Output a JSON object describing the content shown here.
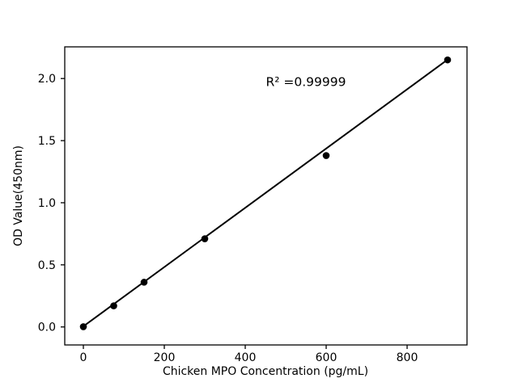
{
  "chart_data": {
    "type": "scatter",
    "title": "",
    "xlabel": "Chicken MPO Concentration (pg/mL)",
    "ylabel": "OD Value(450nm)",
    "x": [
      0,
      75,
      150,
      300,
      600,
      900
    ],
    "y": [
      0.002,
      0.17,
      0.36,
      0.71,
      1.38,
      2.15
    ],
    "series_name": "standard-curve-points",
    "fit_line": {
      "x": [
        0,
        900
      ],
      "y": [
        0.005,
        2.152
      ]
    },
    "annotation": {
      "text": "R² =0.99999",
      "x": 550,
      "y": 1.94
    },
    "xticks": {
      "values": [
        0,
        200,
        400,
        600,
        800
      ],
      "labels": [
        "0",
        "200",
        "400",
        "600",
        "800"
      ]
    },
    "yticks": {
      "values": [
        0.0,
        0.5,
        1.0,
        1.5,
        2.0
      ],
      "labels": [
        "0.0",
        "0.5",
        "1.0",
        "1.5",
        "2.0"
      ]
    },
    "xlim": [
      -46,
      948
    ],
    "ylim": [
      -0.145,
      2.255
    ],
    "grid": false,
    "legend": null,
    "colors": {
      "marker": "#000000",
      "line": "#000000",
      "axis": "#000000",
      "background": "#ffffff"
    }
  }
}
